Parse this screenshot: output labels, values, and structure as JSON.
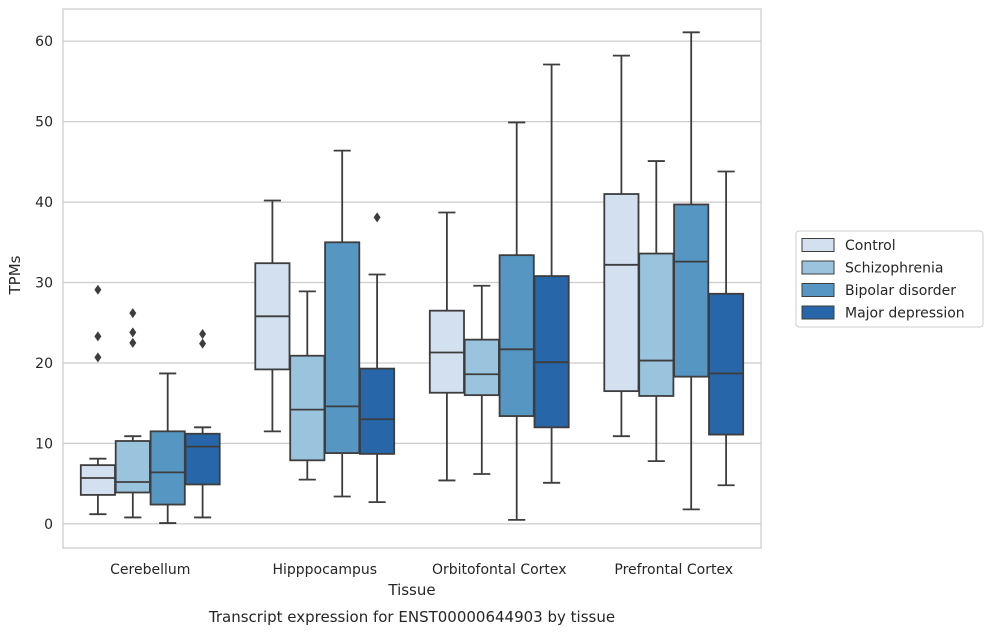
{
  "chart_data": {
    "type": "box",
    "title": "",
    "caption": "Transcript expression for ENST00000644903 by tissue",
    "xlabel": "Tissue",
    "ylabel": "TPMs",
    "ylim": [
      -3,
      64
    ],
    "yticks": [
      0,
      10,
      20,
      30,
      40,
      50,
      60
    ],
    "grid": "horizontal",
    "legend_position": "right",
    "categories": [
      "Cerebellum",
      "Hipppocampus",
      "Orbitofontal Cortex",
      "Prefrontal Cortex"
    ],
    "series": [
      {
        "name": "Control",
        "color": "#d2e0f0",
        "boxes": [
          {
            "whislo": 1.2,
            "q1": 3.6,
            "med": 5.7,
            "q3": 7.3,
            "whishi": 8.1,
            "fliers": [
              20.7,
              23.3,
              29.1
            ]
          },
          {
            "whislo": 11.5,
            "q1": 19.2,
            "med": 25.8,
            "q3": 32.4,
            "whishi": 40.2,
            "fliers": []
          },
          {
            "whislo": 5.4,
            "q1": 16.3,
            "med": 21.3,
            "q3": 26.5,
            "whishi": 38.7,
            "fliers": []
          },
          {
            "whislo": 10.9,
            "q1": 16.5,
            "med": 32.2,
            "q3": 41.0,
            "whishi": 58.2,
            "fliers": []
          }
        ]
      },
      {
        "name": "Schizophrenia",
        "color": "#9ac3de",
        "boxes": [
          {
            "whislo": 0.8,
            "q1": 3.9,
            "med": 5.2,
            "q3": 10.3,
            "whishi": 10.9,
            "fliers": [
              22.5,
              23.8,
              26.2
            ]
          },
          {
            "whislo": 5.5,
            "q1": 7.9,
            "med": 14.2,
            "q3": 20.9,
            "whishi": 28.9,
            "fliers": []
          },
          {
            "whislo": 6.2,
            "q1": 16.0,
            "med": 18.6,
            "q3": 22.9,
            "whishi": 29.6,
            "fliers": []
          },
          {
            "whislo": 7.8,
            "q1": 15.9,
            "med": 20.3,
            "q3": 33.6,
            "whishi": 45.1,
            "fliers": []
          }
        ]
      },
      {
        "name": "Bipolar disorder",
        "color": "#5596c3",
        "boxes": [
          {
            "whislo": 0.1,
            "q1": 2.4,
            "med": 6.4,
            "q3": 11.5,
            "whishi": 18.7,
            "fliers": []
          },
          {
            "whislo": 3.4,
            "q1": 8.8,
            "med": 14.6,
            "q3": 35.0,
            "whishi": 46.4,
            "fliers": []
          },
          {
            "whislo": 0.5,
            "q1": 13.4,
            "med": 21.7,
            "q3": 33.4,
            "whishi": 49.9,
            "fliers": []
          },
          {
            "whislo": 1.8,
            "q1": 18.3,
            "med": 32.6,
            "q3": 39.7,
            "whishi": 61.1,
            "fliers": []
          }
        ]
      },
      {
        "name": "Major depression",
        "color": "#2766a8",
        "boxes": [
          {
            "whislo": 0.8,
            "q1": 4.9,
            "med": 9.6,
            "q3": 11.2,
            "whishi": 12.0,
            "fliers": [
              22.4,
              23.6
            ]
          },
          {
            "whislo": 2.7,
            "q1": 8.7,
            "med": 13.0,
            "q3": 19.3,
            "whishi": 31.0,
            "fliers": [
              38.1
            ]
          },
          {
            "whislo": 5.1,
            "q1": 12.0,
            "med": 20.1,
            "q3": 30.8,
            "whishi": 57.1,
            "fliers": []
          },
          {
            "whislo": 4.8,
            "q1": 11.1,
            "med": 18.7,
            "q3": 28.6,
            "whishi": 43.8,
            "fliers": []
          }
        ]
      }
    ]
  }
}
